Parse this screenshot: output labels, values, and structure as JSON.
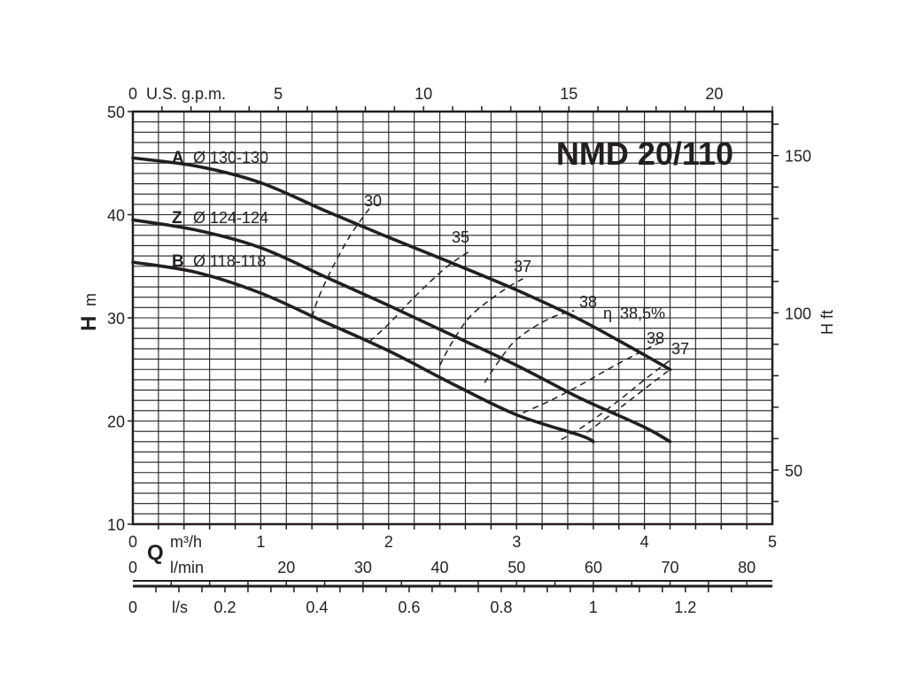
{
  "chart_data": {
    "type": "line",
    "title": "NMD 20/110",
    "x_axis": {
      "symbol": "Q",
      "label": "m³/h",
      "range": [
        0,
        5
      ],
      "ticks": [
        "0",
        "1",
        "2",
        "3",
        "4",
        "5"
      ]
    },
    "x_axis_lmin": {
      "label": "l/min",
      "range": [
        0,
        83.33
      ],
      "ticks": [
        "0",
        "20",
        "30",
        "40",
        "50",
        "60",
        "70",
        "80"
      ],
      "tick_values": [
        0,
        20,
        30,
        40,
        50,
        60,
        70,
        80
      ]
    },
    "x_axis_ls": {
      "label": "l/s",
      "range": [
        0,
        1.389
      ],
      "ticks": [
        "0",
        "0.2",
        "0.4",
        "0.6",
        "0.8",
        "1",
        "1.2"
      ],
      "tick_values": [
        0,
        0.2,
        0.4,
        0.6,
        0.8,
        1,
        1.2
      ]
    },
    "x_axis_top": {
      "label": "U.S. g.p.m.",
      "range": [
        0,
        22.0
      ],
      "ticks": [
        "0",
        "5",
        "10",
        "15",
        "20"
      ],
      "tick_values": [
        0,
        5,
        10,
        15,
        20
      ]
    },
    "y_axis": {
      "symbol": "H",
      "label": "m",
      "range": [
        10,
        50
      ],
      "ticks": [
        "10",
        "20",
        "30",
        "40",
        "50"
      ]
    },
    "y_axis_right": {
      "label": "H ft",
      "range": [
        32.8,
        164.0
      ],
      "ticks": [
        "50",
        "100",
        "150"
      ],
      "tick_values": [
        50,
        100,
        150
      ]
    },
    "grid": true,
    "series": [
      {
        "letter": "A",
        "diameter": "Ø 130-130",
        "x": [
          0,
          0.5,
          1.0,
          1.5,
          2.0,
          2.5,
          3.0,
          3.5,
          4.0,
          4.2
        ],
        "y": [
          45.5,
          44.7,
          43.1,
          40.4,
          37.8,
          35.3,
          32.7,
          29.8,
          26.4,
          25.0
        ]
      },
      {
        "letter": "Z",
        "diameter": "Ø 124-124",
        "x": [
          0,
          0.5,
          1.0,
          1.5,
          2.0,
          2.5,
          3.0,
          3.5,
          4.0,
          4.2
        ],
        "y": [
          39.5,
          38.5,
          36.8,
          34.0,
          31.2,
          28.3,
          25.4,
          22.2,
          19.4,
          18.0
        ]
      },
      {
        "letter": "B",
        "diameter": "Ø 118-118",
        "x": [
          0,
          0.5,
          1.0,
          1.5,
          2.0,
          2.5,
          3.0,
          3.5,
          3.6
        ],
        "y": [
          35.4,
          34.4,
          32.4,
          29.6,
          26.8,
          23.6,
          20.6,
          18.6,
          18.0
        ]
      }
    ],
    "efficiency_label": "η",
    "efficiency_curves": [
      {
        "label": "30",
        "x": [
          1.4,
          1.45,
          1.55,
          1.7,
          1.85
        ],
        "y": [
          30.1,
          31.9,
          34.6,
          38.0,
          40.6
        ]
      },
      {
        "label": "35",
        "x": [
          1.85,
          2.0,
          2.2,
          2.45,
          2.65
        ],
        "y": [
          27.7,
          29.4,
          32.0,
          34.9,
          36.6
        ]
      },
      {
        "label": "37",
        "x": [
          2.4,
          2.5,
          2.65,
          2.9,
          3.05
        ],
        "y": [
          25.4,
          27.7,
          30.3,
          32.7,
          33.8
        ]
      },
      {
        "label": "38",
        "x": [
          2.75,
          2.85,
          3.0,
          3.25,
          3.45
        ],
        "y": [
          23.7,
          25.6,
          27.9,
          29.9,
          30.7
        ]
      },
      {
        "label": "38,5%",
        "x": [
          3.05,
          3.25,
          3.5,
          3.8,
          4.15
        ],
        "y": [
          20.8,
          21.9,
          23.5,
          25.6,
          27.8
        ]
      },
      {
        "label": "38",
        "x": [
          3.35,
          3.55,
          3.8,
          4.0,
          4.2
        ],
        "y": [
          18.2,
          19.7,
          22.0,
          24.0,
          25.9
        ]
      },
      {
        "label": "37",
        "x": [
          3.55,
          3.8,
          4.0,
          4.2
        ],
        "y": [
          18.9,
          21.2,
          23.1,
          25.0
        ]
      }
    ]
  }
}
